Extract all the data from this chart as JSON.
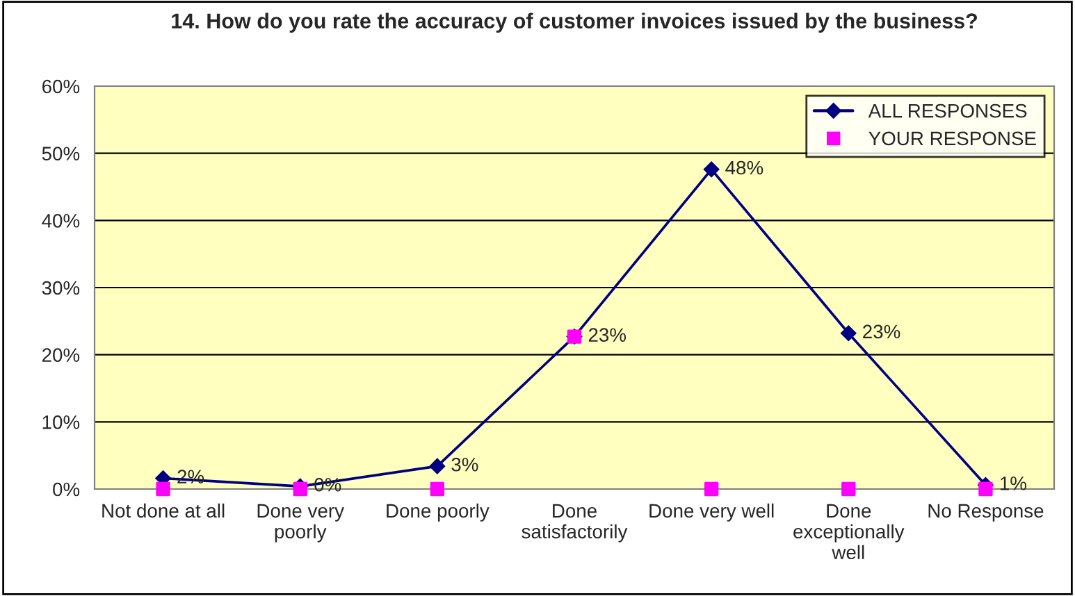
{
  "chart_data": {
    "type": "line",
    "title": "14. How do you rate the accuracy of customer invoices issued by the business?",
    "categories": [
      "Not done at all",
      "Done very\npoorly",
      "Done poorly",
      "Done\nsatisfactorily",
      "Done very well",
      "Done\nexceptionally\nwell",
      "No Response"
    ],
    "series": [
      {
        "name": "ALL RESPONSES",
        "color": "#000080",
        "values": [
          1.6,
          0.4,
          3.4,
          22.7,
          47.6,
          23.2,
          0.6
        ],
        "marker": "diamond",
        "value_labels": [
          "2%",
          "0%",
          "3%",
          "23%",
          "48%",
          "23%",
          "1%"
        ]
      },
      {
        "name": "YOUR RESPONSE",
        "color": "#ff00ff",
        "type": "scatter",
        "values": [
          0,
          0,
          0,
          22.7,
          0,
          0,
          0
        ],
        "marker": "square"
      }
    ],
    "ylim": [
      0,
      60
    ],
    "yticks": [
      {
        "value": 0,
        "label": "0%"
      },
      {
        "value": 10,
        "label": "10%"
      },
      {
        "value": 20,
        "label": "20%"
      },
      {
        "value": 30,
        "label": "30%"
      },
      {
        "value": 40,
        "label": "40%"
      },
      {
        "value": 50,
        "label": "50%"
      },
      {
        "value": 60,
        "label": "60%"
      }
    ],
    "grid": "y",
    "legend": "top right"
  }
}
